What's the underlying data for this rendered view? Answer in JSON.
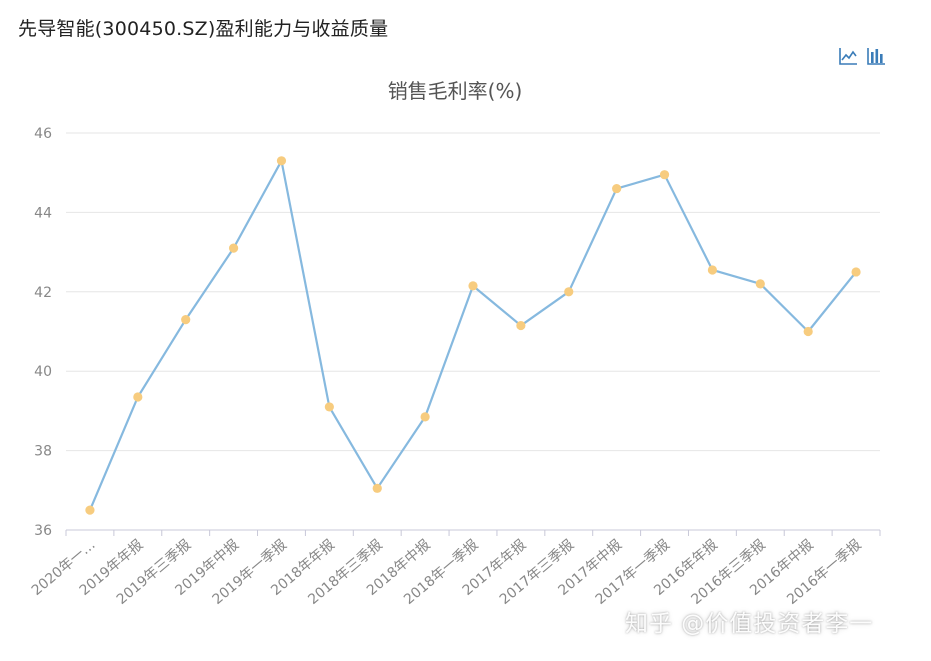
{
  "page": {
    "title": "先导智能(300450.SZ)盈利能力与收益质量"
  },
  "toolbar": {
    "line_icon": "line-chart-icon",
    "bar_icon": "bar-chart-icon"
  },
  "watermark": "知乎 @价值投资者李一",
  "colors": {
    "line": "#86b9df",
    "point": "#f7cc7f",
    "grid": "#e6e6e6",
    "axis_text": "#888888",
    "title_text": "#555555",
    "icon": "#3a7cb8"
  },
  "chart_data": {
    "type": "line",
    "title": "销售毛利率(%)",
    "xlabel": "",
    "ylabel": "",
    "categories": [
      "2020年一…",
      "2019年年报",
      "2019年三季报",
      "2019年中报",
      "2019年一季报",
      "2018年年报",
      "2018年三季报",
      "2018年中报",
      "2018年一季报",
      "2017年年报",
      "2017年三季报",
      "2017年中报",
      "2017年一季报",
      "2016年年报",
      "2016年三季报",
      "2016年中报",
      "2016年一季报"
    ],
    "series": [
      {
        "values": [
          36.5,
          39.35,
          41.3,
          43.1,
          45.3,
          39.1,
          37.05,
          38.85,
          42.15,
          41.15,
          42.0,
          44.6,
          44.95,
          42.55,
          42.2,
          41.0,
          42.5
        ]
      }
    ],
    "ylim": [
      36,
      46
    ],
    "yticks": [
      36,
      38,
      40,
      42,
      44,
      46
    ],
    "grid": true,
    "legend": "none"
  }
}
